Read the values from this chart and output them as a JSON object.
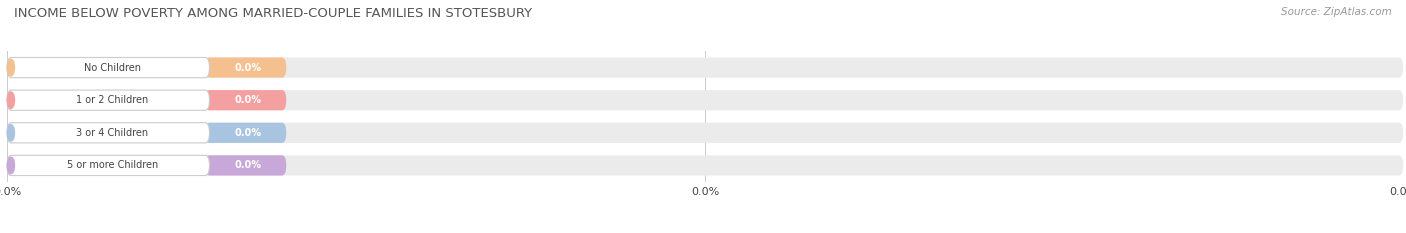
{
  "title": "INCOME BELOW POVERTY AMONG MARRIED-COUPLE FAMILIES IN STOTESBURY",
  "source": "Source: ZipAtlas.com",
  "categories": [
    "No Children",
    "1 or 2 Children",
    "3 or 4 Children",
    "5 or more Children"
  ],
  "values": [
    0.0,
    0.0,
    0.0,
    0.0
  ],
  "bar_colors": [
    "#f5c090",
    "#f5a0a0",
    "#a8c4e0",
    "#c8a8d8"
  ],
  "text_color": "#444444",
  "title_color": "#555555",
  "source_color": "#999999",
  "background_color": "#ffffff",
  "bar_bg_color": "#ebebeb",
  "figsize": [
    14.06,
    2.33
  ],
  "dpi": 100
}
